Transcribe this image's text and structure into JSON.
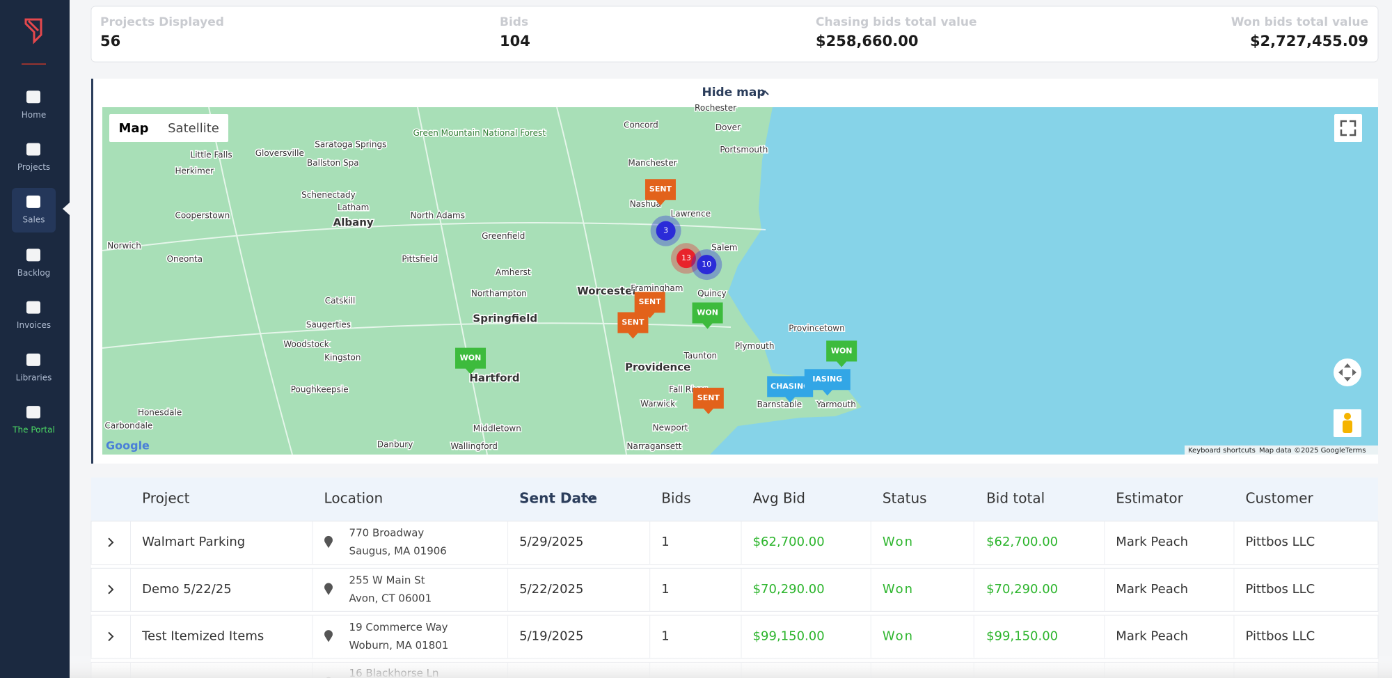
{
  "nav": [
    "Home",
    "Projects",
    "Sales",
    "Backlog",
    "Invoices",
    "Libraries",
    "The Portal"
  ],
  "stats": [
    {
      "label": "Projects Displayed",
      "value": "56"
    },
    {
      "label": "Bids",
      "value": "104"
    },
    {
      "label": "Chasing bids total value",
      "value": "$258,660.00"
    },
    {
      "label": "Won bids total value",
      "value": "$2,727,455.09"
    }
  ],
  "map": {
    "toggle": "Hide map",
    "map_types": [
      "Map",
      "Satellite"
    ],
    "markers": [
      "SENT",
      "3",
      "13",
      "10",
      "SENT",
      "SENT",
      "WON",
      "WON",
      "WON",
      "CHASING",
      "IASING",
      "SENT"
    ],
    "places": [
      "Rochester",
      "Concord",
      "Dover",
      "Green Mountain National Forest",
      "Saratoga Springs",
      "Manchester",
      "Portsmouth",
      "Gloversville",
      "Little Falls",
      "Ballston Spa",
      "Herkimer",
      "Schenectady",
      "Latham",
      "Albany",
      "Cooperstown",
      "North Adams",
      "Greenfield",
      "Nashua",
      "Lawrence",
      "Salem",
      "Norwich",
      "Oneonta",
      "Pittsfield",
      "Amherst",
      "Northampton",
      "Worcester",
      "Framingham",
      "Quincy",
      "Springfield",
      "Catskill",
      "Saugerties",
      "Woodstock",
      "Kingston",
      "Plymouth",
      "Provincetown",
      "Taunton",
      "Providence",
      "Hartford",
      "Poughkeepsie",
      "Fall River",
      "Warwick",
      "Barnstable",
      "Yarmouth",
      "Honesdale",
      "Middletown",
      "Newport",
      "Carbondale",
      "Danbury",
      "Wallingford",
      "Narragansett"
    ],
    "logo": "Google",
    "footer": [
      "Keyboard shortcuts",
      "Map data ©2025 Google",
      "Terms"
    ]
  },
  "table": {
    "columns": [
      "Project",
      "Location",
      "Sent Date",
      "Bids",
      "Avg Bid",
      "Status",
      "Bid total",
      "Estimator",
      "Customer"
    ],
    "rows": [
      {
        "project": "Walmart Parking",
        "address": "770 Broadway",
        "city": "Saugus, MA 01906",
        "sent": "5/29/2025",
        "bids": "1",
        "avg": "$62,700.00",
        "status": "Won",
        "total": "$62,700.00",
        "estimator": "Mark Peach",
        "customer": "Pittbos LLC"
      },
      {
        "project": "Demo 5/22/25",
        "address": "255 W Main St",
        "city": "Avon, CT 06001",
        "sent": "5/22/2025",
        "bids": "1",
        "avg": "$70,290.00",
        "status": "Won",
        "total": "$70,290.00",
        "estimator": "Mark Peach",
        "customer": "Pittbos LLC"
      },
      {
        "project": "Test Itemized Items",
        "address": "19 Commerce Way",
        "city": "Woburn, MA 01801",
        "sent": "5/19/2025",
        "bids": "1",
        "avg": "$99,150.00",
        "status": "Won",
        "total": "$99,150.00",
        "estimator": "Mark Peach",
        "customer": "Pittbos LLC"
      },
      {
        "address": "16 Blackhorse Ln"
      }
    ]
  }
}
